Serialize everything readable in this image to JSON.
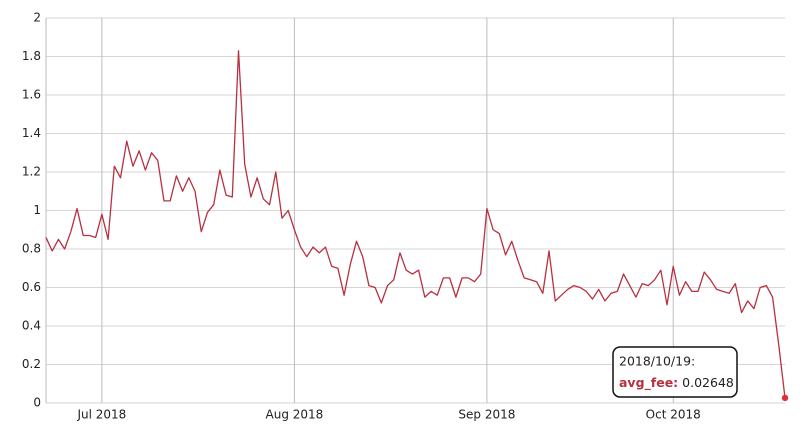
{
  "chart_data": {
    "type": "line",
    "x": [
      "2018/06/22",
      "2018/06/23",
      "2018/06/24",
      "2018/06/25",
      "2018/06/26",
      "2018/06/27",
      "2018/06/28",
      "2018/06/29",
      "2018/06/30",
      "2018/07/01",
      "2018/07/02",
      "2018/07/03",
      "2018/07/04",
      "2018/07/05",
      "2018/07/06",
      "2018/07/07",
      "2018/07/08",
      "2018/07/09",
      "2018/07/10",
      "2018/07/11",
      "2018/07/12",
      "2018/07/13",
      "2018/07/14",
      "2018/07/15",
      "2018/07/16",
      "2018/07/17",
      "2018/07/18",
      "2018/07/19",
      "2018/07/20",
      "2018/07/21",
      "2018/07/22",
      "2018/07/23",
      "2018/07/24",
      "2018/07/25",
      "2018/07/26",
      "2018/07/27",
      "2018/07/28",
      "2018/07/29",
      "2018/07/30",
      "2018/07/31",
      "2018/08/01",
      "2018/08/02",
      "2018/08/03",
      "2018/08/04",
      "2018/08/05",
      "2018/08/06",
      "2018/08/07",
      "2018/08/08",
      "2018/08/09",
      "2018/08/10",
      "2018/08/11",
      "2018/08/12",
      "2018/08/13",
      "2018/08/14",
      "2018/08/15",
      "2018/08/16",
      "2018/08/17",
      "2018/08/18",
      "2018/08/19",
      "2018/08/20",
      "2018/08/21",
      "2018/08/22",
      "2018/08/23",
      "2018/08/24",
      "2018/08/25",
      "2018/08/26",
      "2018/08/27",
      "2018/08/28",
      "2018/08/29",
      "2018/08/30",
      "2018/08/31",
      "2018/09/01",
      "2018/09/02",
      "2018/09/03",
      "2018/09/04",
      "2018/09/05",
      "2018/09/06",
      "2018/09/07",
      "2018/09/08",
      "2018/09/09",
      "2018/09/10",
      "2018/09/11",
      "2018/09/12",
      "2018/09/13",
      "2018/09/14",
      "2018/09/15",
      "2018/09/16",
      "2018/09/17",
      "2018/09/18",
      "2018/09/19",
      "2018/09/20",
      "2018/09/21",
      "2018/09/22",
      "2018/09/23",
      "2018/09/24",
      "2018/09/25",
      "2018/09/26",
      "2018/09/27",
      "2018/09/28",
      "2018/09/29",
      "2018/09/30",
      "2018/10/01",
      "2018/10/02",
      "2018/10/03",
      "2018/10/04",
      "2018/10/05",
      "2018/10/06",
      "2018/10/07",
      "2018/10/08",
      "2018/10/09",
      "2018/10/10",
      "2018/10/11",
      "2018/10/12",
      "2018/10/13",
      "2018/10/14",
      "2018/10/15",
      "2018/10/16",
      "2018/10/17",
      "2018/10/18",
      "2018/10/19"
    ],
    "values": [
      0.86,
      0.79,
      0.85,
      0.8,
      0.89,
      1.01,
      0.87,
      0.87,
      0.86,
      0.98,
      0.85,
      1.23,
      1.17,
      1.36,
      1.23,
      1.31,
      1.21,
      1.3,
      1.26,
      1.05,
      1.05,
      1.18,
      1.1,
      1.17,
      1.1,
      0.89,
      0.99,
      1.03,
      1.21,
      1.08,
      1.07,
      1.83,
      1.24,
      1.07,
      1.17,
      1.06,
      1.03,
      1.2,
      0.96,
      1.0,
      0.9,
      0.81,
      0.76,
      0.81,
      0.78,
      0.81,
      0.71,
      0.7,
      0.56,
      0.72,
      0.84,
      0.76,
      0.61,
      0.6,
      0.52,
      0.61,
      0.64,
      0.78,
      0.69,
      0.67,
      0.69,
      0.55,
      0.58,
      0.56,
      0.65,
      0.65,
      0.55,
      0.65,
      0.65,
      0.63,
      0.67,
      1.01,
      0.9,
      0.88,
      0.77,
      0.84,
      0.74,
      0.65,
      0.64,
      0.63,
      0.57,
      0.79,
      0.53,
      0.56,
      0.59,
      0.61,
      0.6,
      0.58,
      0.54,
      0.59,
      0.53,
      0.57,
      0.58,
      0.67,
      0.61,
      0.55,
      0.62,
      0.61,
      0.64,
      0.69,
      0.51,
      0.71,
      0.56,
      0.63,
      0.58,
      0.58,
      0.68,
      0.64,
      0.59,
      0.58,
      0.57,
      0.62,
      0.47,
      0.53,
      0.49,
      0.6,
      0.61,
      0.55,
      0.3,
      0.02648
    ],
    "color": "#b8303f",
    "xlim": [
      "2018/06/22",
      "2018/10/19"
    ],
    "xticks": [
      {
        "value": "2018/07/01",
        "label": "Jul 2018"
      },
      {
        "value": "2018/08/01",
        "label": "Aug 2018"
      },
      {
        "value": "2018/09/01",
        "label": "Sep 2018"
      },
      {
        "value": "2018/10/01",
        "label": "Oct 2018"
      }
    ],
    "ylim": [
      0,
      2
    ],
    "yticks": [
      0,
      0.2,
      0.4,
      0.6,
      0.8,
      1,
      1.2,
      1.4,
      1.6,
      1.8,
      2
    ],
    "grid": true,
    "tooltip": {
      "date_label": "2018/10/19:",
      "series_label": "avg_fee:"
    }
  }
}
